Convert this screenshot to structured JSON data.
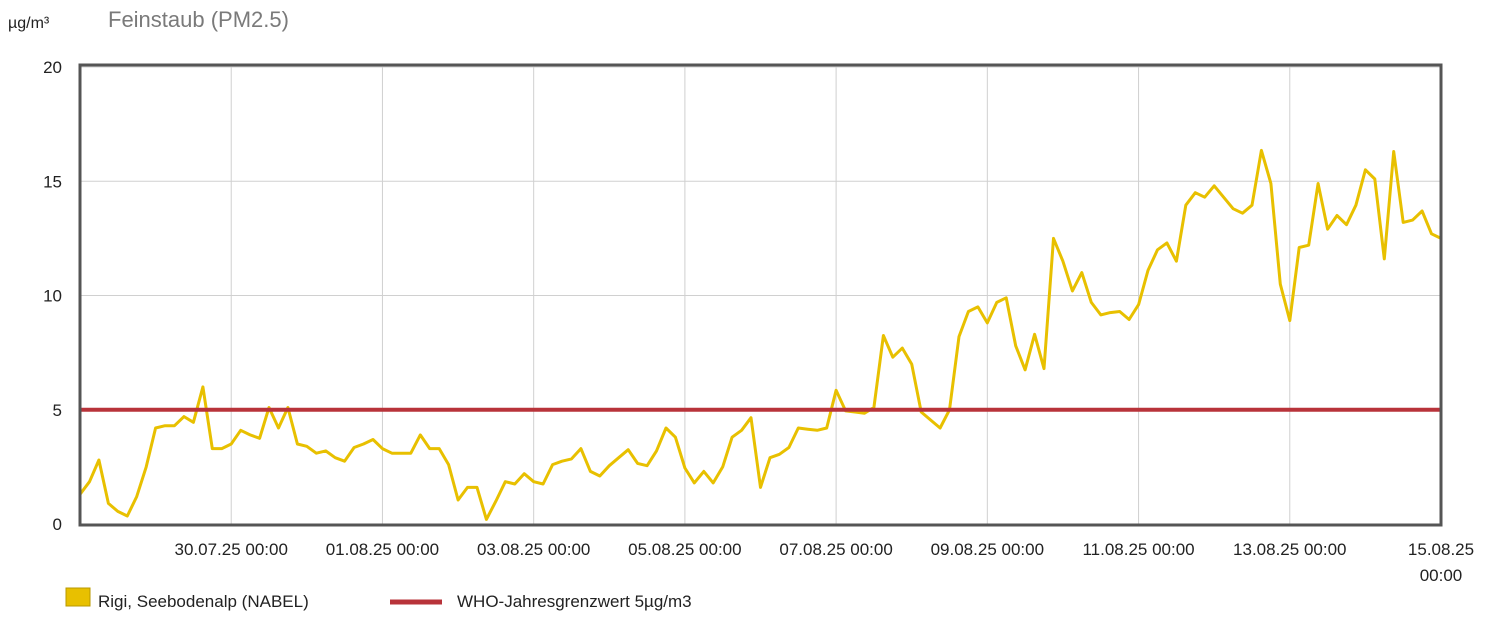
{
  "chart_data": {
    "type": "line",
    "title": "Feinstaub (PM2.5)",
    "y_label": "µg/m³",
    "x": [
      "28.07.25 00:00",
      "28.07.25 03:00",
      "28.07.25 06:00",
      "28.07.25 09:00",
      "28.07.25 12:00",
      "28.07.25 15:00",
      "28.07.25 18:00",
      "28.07.25 21:00",
      "29.07.25 00:00",
      "29.07.25 03:00",
      "29.07.25 06:00",
      "29.07.25 09:00",
      "29.07.25 12:00",
      "29.07.25 15:00",
      "29.07.25 18:00",
      "29.07.25 21:00",
      "30.07.25 00:00",
      "30.07.25 03:00",
      "30.07.25 06:00",
      "30.07.25 09:00",
      "30.07.25 12:00",
      "30.07.25 15:00",
      "30.07.25 18:00",
      "30.07.25 21:00",
      "31.07.25 00:00",
      "31.07.25 03:00",
      "31.07.25 06:00",
      "31.07.25 09:00",
      "31.07.25 12:00",
      "31.07.25 15:00",
      "31.07.25 18:00",
      "31.07.25 21:00",
      "01.08.25 00:00",
      "01.08.25 03:00",
      "01.08.25 06:00",
      "01.08.25 09:00",
      "01.08.25 12:00",
      "01.08.25 15:00",
      "01.08.25 18:00",
      "01.08.25 21:00",
      "02.08.25 00:00",
      "02.08.25 03:00",
      "02.08.25 06:00",
      "02.08.25 09:00",
      "02.08.25 12:00",
      "02.08.25 15:00",
      "02.08.25 18:00",
      "02.08.25 21:00",
      "03.08.25 00:00",
      "03.08.25 03:00",
      "03.08.25 06:00",
      "03.08.25 09:00",
      "03.08.25 12:00",
      "03.08.25 15:00",
      "03.08.25 18:00",
      "03.08.25 21:00",
      "04.08.25 00:00",
      "04.08.25 03:00",
      "04.08.25 06:00",
      "04.08.25 09:00",
      "04.08.25 12:00",
      "04.08.25 15:00",
      "04.08.25 18:00",
      "04.08.25 21:00",
      "05.08.25 00:00",
      "05.08.25 03:00",
      "05.08.25 06:00",
      "05.08.25 09:00",
      "05.08.25 12:00",
      "05.08.25 15:00",
      "05.08.25 18:00",
      "05.08.25 21:00",
      "06.08.25 00:00",
      "06.08.25 03:00",
      "06.08.25 06:00",
      "06.08.25 09:00",
      "06.08.25 12:00",
      "06.08.25 15:00",
      "06.08.25 18:00",
      "06.08.25 21:00",
      "07.08.25 00:00",
      "07.08.25 03:00",
      "07.08.25 06:00",
      "07.08.25 09:00",
      "07.08.25 12:00",
      "07.08.25 15:00",
      "07.08.25 18:00",
      "07.08.25 21:00",
      "08.08.25 00:00",
      "08.08.25 03:00",
      "08.08.25 06:00",
      "08.08.25 09:00",
      "08.08.25 12:00",
      "08.08.25 15:00",
      "08.08.25 18:00",
      "08.08.25 21:00",
      "09.08.25 00:00",
      "09.08.25 03:00",
      "09.08.25 06:00",
      "09.08.25 09:00",
      "09.08.25 12:00",
      "09.08.25 15:00",
      "09.08.25 18:00",
      "09.08.25 21:00",
      "10.08.25 00:00",
      "10.08.25 03:00",
      "10.08.25 06:00",
      "10.08.25 09:00",
      "10.08.25 12:00",
      "10.08.25 15:00",
      "10.08.25 18:00",
      "10.08.25 21:00",
      "11.08.25 00:00",
      "11.08.25 03:00",
      "11.08.25 06:00",
      "11.08.25 09:00",
      "11.08.25 12:00",
      "11.08.25 15:00",
      "11.08.25 18:00",
      "11.08.25 21:00",
      "12.08.25 00:00",
      "12.08.25 03:00",
      "12.08.25 06:00",
      "12.08.25 09:00",
      "12.08.25 12:00",
      "12.08.25 15:00",
      "12.08.25 18:00",
      "12.08.25 21:00",
      "13.08.25 00:00",
      "13.08.25 03:00",
      "13.08.25 06:00",
      "13.08.25 09:00",
      "13.08.25 12:00",
      "13.08.25 15:00",
      "13.08.25 18:00",
      "13.08.25 21:00",
      "14.08.25 00:00",
      "14.08.25 03:00",
      "14.08.25 06:00",
      "14.08.25 09:00",
      "14.08.25 12:00",
      "14.08.25 15:00",
      "14.08.25 18:00",
      "14.08.25 21:00",
      "15.08.25 00:00"
    ],
    "series": [
      {
        "name": "Rigi, Seebodenalp (NABEL)",
        "color": "#e8c000",
        "values": [
          1.3,
          1.85,
          2.8,
          0.9,
          0.55,
          0.35,
          1.2,
          2.5,
          4.2,
          4.3,
          4.3,
          4.7,
          4.45,
          6.0,
          3.3,
          3.3,
          3.5,
          4.1,
          3.9,
          3.75,
          5.1,
          4.2,
          5.1,
          3.5,
          3.4,
          3.1,
          3.2,
          2.9,
          2.75,
          3.35,
          3.5,
          3.7,
          3.3,
          3.1,
          3.1,
          3.1,
          3.9,
          3.3,
          3.3,
          2.6,
          1.05,
          1.6,
          1.6,
          0.2,
          1.0,
          1.85,
          1.75,
          2.2,
          1.85,
          1.75,
          2.6,
          2.75,
          2.85,
          3.3,
          2.3,
          2.1,
          2.55,
          2.9,
          3.25,
          2.65,
          2.55,
          3.2,
          4.2,
          3.8,
          2.45,
          1.8,
          2.3,
          1.8,
          2.5,
          3.8,
          4.1,
          4.65,
          1.6,
          2.9,
          3.05,
          3.35,
          4.2,
          4.15,
          4.1,
          4.2,
          5.85,
          4.95,
          4.9,
          4.85,
          5.1,
          8.25,
          7.3,
          7.7,
          7.0,
          4.9,
          4.55,
          4.2,
          5.0,
          8.2,
          9.3,
          9.5,
          8.8,
          9.7,
          9.9,
          7.8,
          6.75,
          8.3,
          6.8,
          12.5,
          11.5,
          10.2,
          11.0,
          9.7,
          9.15,
          9.25,
          9.3,
          8.95,
          9.6,
          11.1,
          12.0,
          12.3,
          11.5,
          13.95,
          14.5,
          14.3,
          14.8,
          14.3,
          13.8,
          13.6,
          13.95,
          16.35,
          14.9,
          10.5,
          8.9,
          12.1,
          12.2,
          14.9,
          12.9,
          13.5,
          13.1,
          13.95,
          15.5,
          15.1,
          11.6,
          16.3,
          13.2,
          13.3,
          13.7,
          12.7,
          12.5
        ]
      }
    ],
    "reference_line": {
      "name": "WHO-Jahresgrenzwert 5µg/m3",
      "value": 5,
      "color": "#b8333a"
    },
    "xlim": [
      "28.07.25 00:00",
      "15.08.25 00:00"
    ],
    "xticks": [
      "30.07.25 00:00",
      "01.08.25 00:00",
      "03.08.25 00:00",
      "05.08.25 00:00",
      "07.08.25 00:00",
      "09.08.25 00:00",
      "11.08.25 00:00",
      "13.08.25 00:00",
      "15.08.25 00:00"
    ],
    "ylim": [
      0,
      20
    ],
    "yticks": [
      0,
      5,
      10,
      15,
      20
    ],
    "grid": true
  }
}
